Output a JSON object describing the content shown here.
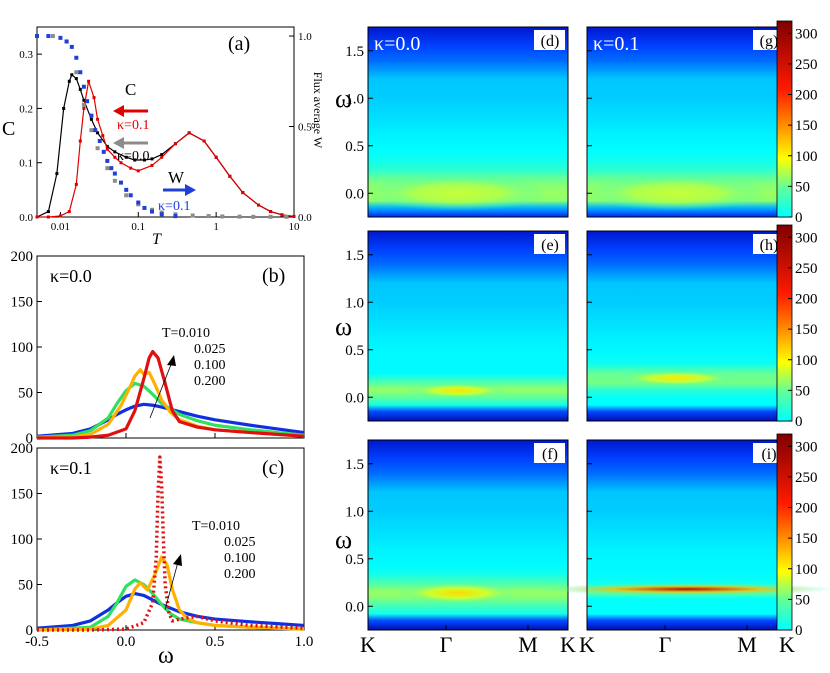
{
  "chart_data": [
    {
      "id": "a",
      "type": "line",
      "panel_label": "(a)",
      "xlabel": "T",
      "ylabel_left": "C",
      "ylabel_right": "Flux average W",
      "xscale": "log",
      "xlim": [
        0.005,
        10
      ],
      "ylim_left": [
        0,
        0.35
      ],
      "ylim_right": [
        0,
        1.05
      ],
      "xticks": [
        {
          "v": 0.01,
          "label": "0.01"
        },
        {
          "v": 0.1,
          "label": "0.1"
        },
        {
          "v": 1,
          "label": "1"
        },
        {
          "v": 10,
          "label": "10"
        }
      ],
      "yticks_left": [
        {
          "v": 0,
          "label": "0.0"
        },
        {
          "v": 0.1,
          "label": "0.1"
        },
        {
          "v": 0.2,
          "label": "0.2"
        },
        {
          "v": 0.3,
          "label": "0.3"
        }
      ],
      "yticks_right": [
        {
          "v": 0,
          "label": "0.0"
        },
        {
          "v": 0.5,
          "label": "0.5"
        },
        {
          "v": 1.0,
          "label": "1.0"
        }
      ],
      "annotations": {
        "C": "C",
        "kappa01_C": "κ=0.1",
        "kappa00_C": "κ=0.0",
        "W": "W",
        "kappa01_W": "κ=0.1"
      },
      "series": [
        {
          "name": "C κ=0.0",
          "axis": "left",
          "color": "#000000",
          "style": "line+markers",
          "x": [
            0.005,
            0.007,
            0.009,
            0.011,
            0.013,
            0.014,
            0.016,
            0.018,
            0.02,
            0.025,
            0.03,
            0.04,
            0.05,
            0.07,
            0.09,
            0.12,
            0.15,
            0.2,
            0.3,
            0.45,
            0.7,
            1.0,
            1.5,
            2.2,
            3.5,
            5,
            7,
            10
          ],
          "y": [
            0.0,
            0.01,
            0.08,
            0.2,
            0.25,
            0.262,
            0.255,
            0.235,
            0.215,
            0.18,
            0.155,
            0.13,
            0.12,
            0.11,
            0.105,
            0.105,
            0.107,
            0.115,
            0.135,
            0.155,
            0.14,
            0.11,
            0.075,
            0.045,
            0.022,
            0.01,
            0.004,
            0.001
          ]
        },
        {
          "name": "C κ=0.1",
          "axis": "left",
          "color": "#e00000",
          "style": "line+markers",
          "x": [
            0.005,
            0.007,
            0.01,
            0.013,
            0.016,
            0.018,
            0.02,
            0.023,
            0.027,
            0.03,
            0.035,
            0.04,
            0.05,
            0.06,
            0.08,
            0.1,
            0.15,
            0.2,
            0.3,
            0.45,
            0.7,
            1.0,
            1.5,
            2.2,
            3.5,
            5,
            7,
            10
          ],
          "y": [
            0.0,
            0.0,
            0.002,
            0.01,
            0.06,
            0.14,
            0.2,
            0.25,
            0.22,
            0.18,
            0.15,
            0.125,
            0.11,
            0.1,
            0.09,
            0.085,
            0.095,
            0.11,
            0.135,
            0.155,
            0.14,
            0.11,
            0.075,
            0.045,
            0.022,
            0.01,
            0.004,
            0.001
          ]
        },
        {
          "name": "W κ=0.0",
          "axis": "right",
          "color": "#8c8c8c",
          "style": "markers",
          "x": [
            0.005,
            0.008,
            0.012,
            0.016,
            0.02,
            0.025,
            0.03,
            0.04,
            0.05,
            0.07,
            0.1,
            0.15,
            0.2,
            0.3,
            0.5,
            0.8,
            1.2,
            2,
            3,
            5,
            8
          ],
          "y": [
            1.0,
            1.0,
            0.97,
            0.8,
            0.62,
            0.48,
            0.38,
            0.27,
            0.2,
            0.12,
            0.07,
            0.04,
            0.025,
            0.015,
            0.008,
            0.005,
            0.003,
            0.002,
            0.001,
            0.001,
            0.001
          ]
        },
        {
          "name": "W κ=0.1",
          "axis": "right",
          "color": "#1f3fd6",
          "style": "markers",
          "x": [
            0.005,
            0.007,
            0.01,
            0.012,
            0.014,
            0.016,
            0.018,
            0.02,
            0.022,
            0.025,
            0.028,
            0.032,
            0.036,
            0.04,
            0.045,
            0.05,
            0.06,
            0.07,
            0.08,
            0.1,
            0.12,
            0.15,
            0.2,
            0.3
          ],
          "y": [
            1.0,
            1.0,
            0.99,
            0.97,
            0.94,
            0.88,
            0.8,
            0.72,
            0.64,
            0.56,
            0.48,
            0.42,
            0.36,
            0.31,
            0.27,
            0.24,
            0.19,
            0.15,
            0.12,
            0.08,
            0.05,
            0.03,
            0.015,
            0.005
          ]
        }
      ]
    },
    {
      "id": "b",
      "type": "line",
      "panel_label": "(b)",
      "kappa_label": "κ=0.0",
      "xlabel": "",
      "ylabel": "",
      "xlim": [
        -0.5,
        1.0
      ],
      "ylim": [
        0,
        200
      ],
      "yticks": [
        {
          "v": 0,
          "label": "0"
        },
        {
          "v": 50,
          "label": "50"
        },
        {
          "v": 100,
          "label": "100"
        },
        {
          "v": 150,
          "label": "150"
        },
        {
          "v": 200,
          "label": "200"
        }
      ],
      "legend": [
        "T=0.010",
        "0.025",
        "0.100",
        "0.200"
      ],
      "series": [
        {
          "name": "T=0.010",
          "color": "#e01010",
          "x": [
            -0.5,
            -0.3,
            -0.2,
            -0.1,
            0.0,
            0.05,
            0.1,
            0.13,
            0.15,
            0.18,
            0.22,
            0.26,
            0.3,
            0.4,
            0.5,
            0.7,
            0.85,
            1.0
          ],
          "y": [
            0,
            0,
            1,
            3,
            10,
            30,
            65,
            88,
            95,
            88,
            60,
            30,
            18,
            12,
            9,
            6,
            4,
            2
          ]
        },
        {
          "name": "T=0.025",
          "color": "#ffb000",
          "x": [
            -0.5,
            -0.3,
            -0.2,
            -0.1,
            -0.03,
            0.02,
            0.05,
            0.08,
            0.1,
            0.13,
            0.16,
            0.2,
            0.25,
            0.3,
            0.4,
            0.5,
            0.7,
            0.85,
            1.0
          ],
          "y": [
            0,
            1,
            4,
            15,
            35,
            55,
            68,
            75,
            70,
            72,
            60,
            42,
            28,
            20,
            13,
            9,
            6,
            4,
            2
          ]
        },
        {
          "name": "T=0.100",
          "color": "#30e060",
          "x": [
            -0.5,
            -0.3,
            -0.2,
            -0.1,
            -0.05,
            0.0,
            0.05,
            0.1,
            0.15,
            0.2,
            0.3,
            0.4,
            0.5,
            0.7,
            0.85,
            1.0
          ],
          "y": [
            1,
            3,
            8,
            22,
            38,
            52,
            60,
            57,
            48,
            38,
            26,
            19,
            14,
            9,
            6,
            3
          ]
        },
        {
          "name": "T=0.200",
          "color": "#1030e0",
          "x": [
            -0.5,
            -0.3,
            -0.2,
            -0.1,
            -0.05,
            0.0,
            0.05,
            0.1,
            0.15,
            0.2,
            0.3,
            0.4,
            0.5,
            0.7,
            0.85,
            1.0
          ],
          "y": [
            2,
            5,
            10,
            20,
            26,
            31,
            35,
            37,
            36,
            34,
            29,
            24,
            20,
            14,
            10,
            6
          ]
        }
      ]
    },
    {
      "id": "c",
      "type": "line",
      "panel_label": "(c)",
      "kappa_label": "κ=0.1",
      "xlabel": "ω",
      "ylabel": "",
      "xlim": [
        -0.5,
        1.0
      ],
      "ylim": [
        0,
        200
      ],
      "xticks": [
        {
          "v": -0.5,
          "label": "-0.5"
        },
        {
          "v": 0.0,
          "label": "0.0"
        },
        {
          "v": 0.5,
          "label": "0.5"
        },
        {
          "v": 1.0,
          "label": "1.0"
        }
      ],
      "yticks": [
        {
          "v": 0,
          "label": "0"
        },
        {
          "v": 50,
          "label": "50"
        },
        {
          "v": 100,
          "label": "100"
        },
        {
          "v": 150,
          "label": "150"
        },
        {
          "v": 200,
          "label": "200"
        }
      ],
      "legend": [
        "T=0.010",
        "0.025",
        "0.100",
        "0.200"
      ],
      "series": [
        {
          "name": "T=0.010",
          "color": "#e01010",
          "style": "dotted",
          "x": [
            -0.5,
            -0.2,
            0.0,
            0.1,
            0.15,
            0.17,
            0.18,
            0.19,
            0.2,
            0.21,
            0.22,
            0.24,
            0.26,
            0.3,
            0.4,
            0.5,
            0.7,
            1.0
          ],
          "y": [
            0,
            0,
            1,
            8,
            30,
            80,
            150,
            190,
            160,
            100,
            50,
            20,
            10,
            12,
            15,
            10,
            5,
            2
          ]
        },
        {
          "name": "T=0.025",
          "color": "#ffb000",
          "x": [
            -0.5,
            -0.2,
            -0.1,
            0.0,
            0.05,
            0.08,
            0.12,
            0.16,
            0.2,
            0.23,
            0.26,
            0.3,
            0.35,
            0.4,
            0.5,
            0.7,
            1.0
          ],
          "y": [
            0,
            1,
            5,
            22,
            45,
            52,
            44,
            60,
            80,
            72,
            45,
            22,
            12,
            8,
            5,
            3,
            1
          ]
        },
        {
          "name": "T=0.100",
          "color": "#30e060",
          "x": [
            -0.5,
            -0.2,
            -0.1,
            -0.05,
            0.0,
            0.05,
            0.1,
            0.15,
            0.2,
            0.25,
            0.3,
            0.4,
            0.5,
            0.7,
            1.0
          ],
          "y": [
            0,
            3,
            15,
            30,
            48,
            55,
            50,
            40,
            28,
            18,
            12,
            8,
            5,
            3,
            1
          ]
        },
        {
          "name": "T=0.200",
          "color": "#1030e0",
          "x": [
            -0.5,
            -0.3,
            -0.2,
            -0.1,
            -0.05,
            0.0,
            0.05,
            0.1,
            0.15,
            0.2,
            0.3,
            0.4,
            0.5,
            0.7,
            0.85,
            1.0
          ],
          "y": [
            2,
            5,
            10,
            22,
            30,
            37,
            40,
            38,
            33,
            28,
            20,
            15,
            12,
            9,
            7,
            5
          ]
        }
      ]
    },
    {
      "id": "heatmaps",
      "type": "heatmap",
      "ylabel": "ω",
      "ylim": [
        -0.25,
        1.75
      ],
      "yticks": [
        {
          "v": 0.0,
          "label": "0.0"
        },
        {
          "v": 0.5,
          "label": "0.5"
        },
        {
          "v": 1.0,
          "label": "1.0"
        },
        {
          "v": 1.5,
          "label": "1.5"
        }
      ],
      "xticks": [
        {
          "v": 0.0,
          "label": "K"
        },
        {
          "v": 0.39,
          "label": "Γ"
        },
        {
          "v": 0.8,
          "label": "M"
        },
        {
          "v": 1.0,
          "label": "K"
        }
      ],
      "colorbar_range": [
        0,
        320
      ],
      "colorbar_ticks": [
        {
          "v": 0,
          "label": "0"
        },
        {
          "v": 50,
          "label": "50"
        },
        {
          "v": 100,
          "label": "100"
        },
        {
          "v": 150,
          "label": "150"
        },
        {
          "v": 200,
          "label": "200"
        },
        {
          "v": 250,
          "label": "250"
        },
        {
          "v": 300,
          "label": "300"
        }
      ],
      "panels": [
        {
          "label": "(d)",
          "kappa_label": "κ=0.0",
          "peak_omega": 0.0,
          "peak_intensity": 85,
          "width": 0.45,
          "spread": 0.12
        },
        {
          "label": "(e)",
          "kappa_label": "",
          "peak_omega": 0.07,
          "peak_intensity": 140,
          "width": 0.25,
          "spread": 0.05
        },
        {
          "label": "(f)",
          "kappa_label": "",
          "peak_omega": 0.14,
          "peak_intensity": 150,
          "width": 0.3,
          "spread": 0.07
        },
        {
          "label": "(g)",
          "kappa_label": "κ=0.1",
          "peak_omega": 0.0,
          "peak_intensity": 85,
          "width": 0.45,
          "spread": 0.12
        },
        {
          "label": "(h)",
          "kappa_label": "",
          "peak_omega": 0.2,
          "peak_intensity": 140,
          "width": 0.3,
          "spread": 0.05
        },
        {
          "label": "(i)",
          "kappa_label": "",
          "peak_omega": 0.18,
          "peak_intensity": 300,
          "width": 1.5,
          "spread": 0.025
        }
      ]
    }
  ]
}
